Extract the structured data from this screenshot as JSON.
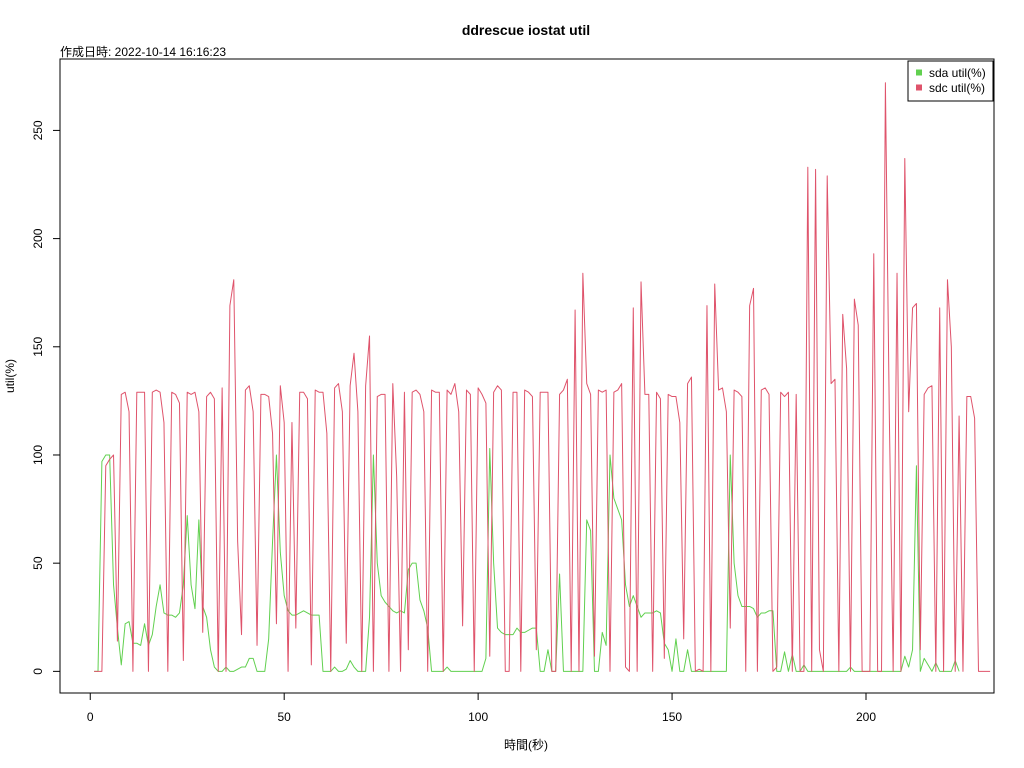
{
  "page": {
    "title": "ddrescue iostat util",
    "subtitle": "作成日時: 2022-10-14 16:16:23"
  },
  "chart_data": {
    "type": "line",
    "title": "ddrescue iostat util",
    "subtitle": "作成日時: 2022-10-14 16:16:23",
    "xlabel": "時間(秒)",
    "ylabel": "util(%)",
    "xlim": [
      -7.8,
      233
    ],
    "ylim": [
      -10,
      283
    ],
    "x_ticks": [
      0,
      50,
      100,
      150,
      200
    ],
    "y_ticks": [
      0,
      50,
      100,
      150,
      200,
      250
    ],
    "grid": false,
    "legend_position": "top-right",
    "x_start": 1,
    "series": [
      {
        "name": "sda util(%)",
        "color": "#61D04F",
        "values": [
          0,
          0,
          97,
          100,
          100,
          40,
          20,
          3,
          22,
          23,
          13,
          13,
          12,
          22,
          12,
          17,
          30,
          40,
          27,
          26,
          26,
          25,
          27,
          40,
          72,
          40,
          29,
          70,
          30,
          25,
          10,
          2,
          0,
          0,
          2,
          0,
          0,
          1,
          2,
          2,
          6,
          6,
          0,
          0,
          0,
          15,
          60,
          100,
          55,
          35,
          28,
          26,
          26,
          27,
          28,
          27,
          26,
          26,
          26,
          0,
          0,
          0,
          2,
          0,
          0,
          1,
          5,
          2,
          0,
          0,
          0,
          25,
          100,
          50,
          35,
          32,
          30,
          28,
          27,
          28,
          27,
          47,
          50,
          50,
          33,
          28,
          20,
          0,
          0,
          0,
          0,
          2,
          0,
          0,
          0,
          0,
          0,
          0,
          0,
          0,
          0,
          6,
          103,
          50,
          20,
          18,
          17,
          17,
          17,
          20,
          18,
          18,
          19,
          20,
          20,
          0,
          0,
          10,
          0,
          0,
          45,
          0,
          0,
          0,
          0,
          0,
          0,
          70,
          65,
          0,
          0,
          18,
          12,
          100,
          80,
          75,
          70,
          40,
          30,
          35,
          30,
          25,
          27,
          27,
          27,
          28,
          27,
          13,
          10,
          0,
          15,
          0,
          0,
          10,
          0,
          0,
          0,
          0,
          0,
          0,
          0,
          0,
          0,
          0,
          100,
          50,
          35,
          30,
          30,
          30,
          29,
          25,
          27,
          27,
          28,
          28,
          0,
          0,
          9,
          0,
          8,
          0,
          0,
          3,
          0,
          0,
          0,
          0,
          0,
          0,
          0,
          0,
          0,
          0,
          0,
          2,
          0,
          0,
          0,
          0,
          0,
          0,
          0,
          0,
          0,
          0,
          0,
          0,
          0,
          7,
          2,
          10,
          95,
          0,
          6,
          3,
          0,
          4,
          0,
          0,
          0,
          0,
          5,
          0
        ]
      },
      {
        "name": "sdc util(%)",
        "color": "#DF536B",
        "values": [
          0,
          0,
          0,
          95,
          98,
          100,
          14,
          128,
          129,
          120,
          0,
          129,
          129,
          129,
          0,
          129,
          130,
          129,
          115,
          0,
          129,
          128,
          124,
          5,
          129,
          128,
          129,
          120,
          18,
          127,
          129,
          126,
          0,
          131,
          0,
          169,
          181,
          60,
          17,
          130,
          132,
          120,
          12,
          128,
          128,
          127,
          110,
          22,
          132,
          115,
          0,
          115,
          20,
          129,
          129,
          126,
          3,
          130,
          129,
          129,
          110,
          0,
          131,
          133,
          120,
          13,
          132,
          147,
          120,
          0,
          132,
          155,
          0,
          127,
          128,
          128,
          0,
          133,
          90,
          0,
          129,
          10,
          129,
          130,
          128,
          120,
          0,
          130,
          129,
          129,
          0,
          130,
          128,
          133,
          120,
          21,
          130,
          128,
          0,
          131,
          128,
          124,
          7,
          129,
          132,
          130,
          0,
          0,
          129,
          129,
          0,
          130,
          129,
          127,
          10,
          129,
          129,
          129,
          0,
          0,
          128,
          130,
          135,
          0,
          167,
          0,
          184,
          133,
          128,
          7,
          130,
          129,
          130,
          0,
          129,
          130,
          133,
          2,
          0,
          168,
          0,
          180,
          128,
          128,
          0,
          129,
          126,
          6,
          128,
          127,
          127,
          115,
          15,
          133,
          136,
          0,
          1,
          0,
          169,
          0,
          179,
          130,
          131,
          120,
          20,
          130,
          129,
          127,
          0,
          169,
          177,
          0,
          130,
          131,
          128,
          0,
          2,
          129,
          127,
          129,
          0,
          128,
          0,
          0,
          233,
          0,
          232,
          10,
          0,
          229,
          133,
          135,
          0,
          165,
          140,
          0,
          172,
          160,
          0,
          0,
          0,
          193,
          0,
          0,
          272,
          120,
          0,
          184,
          0,
          237,
          120,
          168,
          170,
          10,
          128,
          131,
          132,
          0,
          168,
          0,
          181,
          150,
          0,
          118,
          0,
          127,
          127,
          117,
          0,
          0,
          0,
          0
        ]
      }
    ]
  }
}
